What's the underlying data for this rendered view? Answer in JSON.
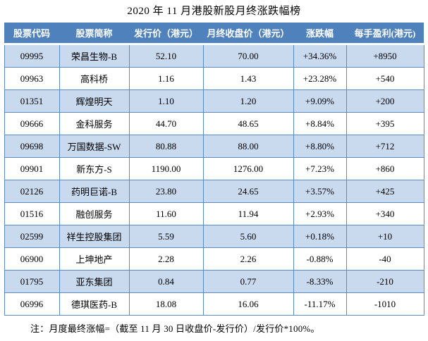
{
  "title": "2020 年 11 月港股新股月终涨跌幅榜",
  "colors": {
    "header_bg": "#4f81bd",
    "header_text": "#ffffff",
    "band_bg": "#c9d9ee",
    "grid_border": "#5b8ac4",
    "body_text": "#000000"
  },
  "table": {
    "headers": [
      "股票代码",
      "股票简称",
      "发行价（港元）",
      "月终收盘价（港元）",
      "涨跌幅",
      "每手盈利(港元)"
    ],
    "rows": [
      {
        "code": "09995",
        "name": "荣昌生物-B",
        "issue_price": "52.10",
        "close_price": "70.00",
        "change": "+34.36%",
        "profit_per_lot": "+8950"
      },
      {
        "code": "09963",
        "name": "高科桥",
        "issue_price": "1.16",
        "close_price": "1.43",
        "change": "+23.28%",
        "profit_per_lot": "+540"
      },
      {
        "code": "01351",
        "name": "辉煌明天",
        "issue_price": "1.10",
        "close_price": "1.20",
        "change": "+9.09%",
        "profit_per_lot": "+200"
      },
      {
        "code": "09666",
        "name": "金科服务",
        "issue_price": "44.70",
        "close_price": "48.65",
        "change": "+8.84%",
        "profit_per_lot": "+395"
      },
      {
        "code": "09698",
        "name": "万国数据-SW",
        "issue_price": "80.88",
        "close_price": "88.00",
        "change": "+8.80%",
        "profit_per_lot": "+712"
      },
      {
        "code": "09901",
        "name": "新东方-S",
        "issue_price": "1190.00",
        "close_price": "1276.00",
        "change": "+7.23%",
        "profit_per_lot": "+860"
      },
      {
        "code": "02126",
        "name": "药明巨诺-B",
        "issue_price": "23.80",
        "close_price": "24.65",
        "change": "+3.57%",
        "profit_per_lot": "+425"
      },
      {
        "code": "01516",
        "name": "融创服务",
        "issue_price": "11.60",
        "close_price": "11.94",
        "change": "+2.93%",
        "profit_per_lot": "+340"
      },
      {
        "code": "02599",
        "name": "祥生控股集团",
        "issue_price": "5.59",
        "close_price": "5.60",
        "change": "+0.18%",
        "profit_per_lot": "+10"
      },
      {
        "code": "06900",
        "name": "上坤地产",
        "issue_price": "2.28",
        "close_price": "2.26",
        "change": "-0.88%",
        "profit_per_lot": "-40"
      },
      {
        "code": "01795",
        "name": "亚东集团",
        "issue_price": "0.84",
        "close_price": "0.77",
        "change": "-8.33%",
        "profit_per_lot": "-210"
      },
      {
        "code": "06996",
        "name": "德琪医药-B",
        "issue_price": "18.08",
        "close_price": "16.06",
        "change": "-11.17%",
        "profit_per_lot": "-1010"
      }
    ]
  },
  "footnote": "注：月度最终涨幅=（截至 11 月 30 日收盘价-发行价）/发行价*100%。"
}
